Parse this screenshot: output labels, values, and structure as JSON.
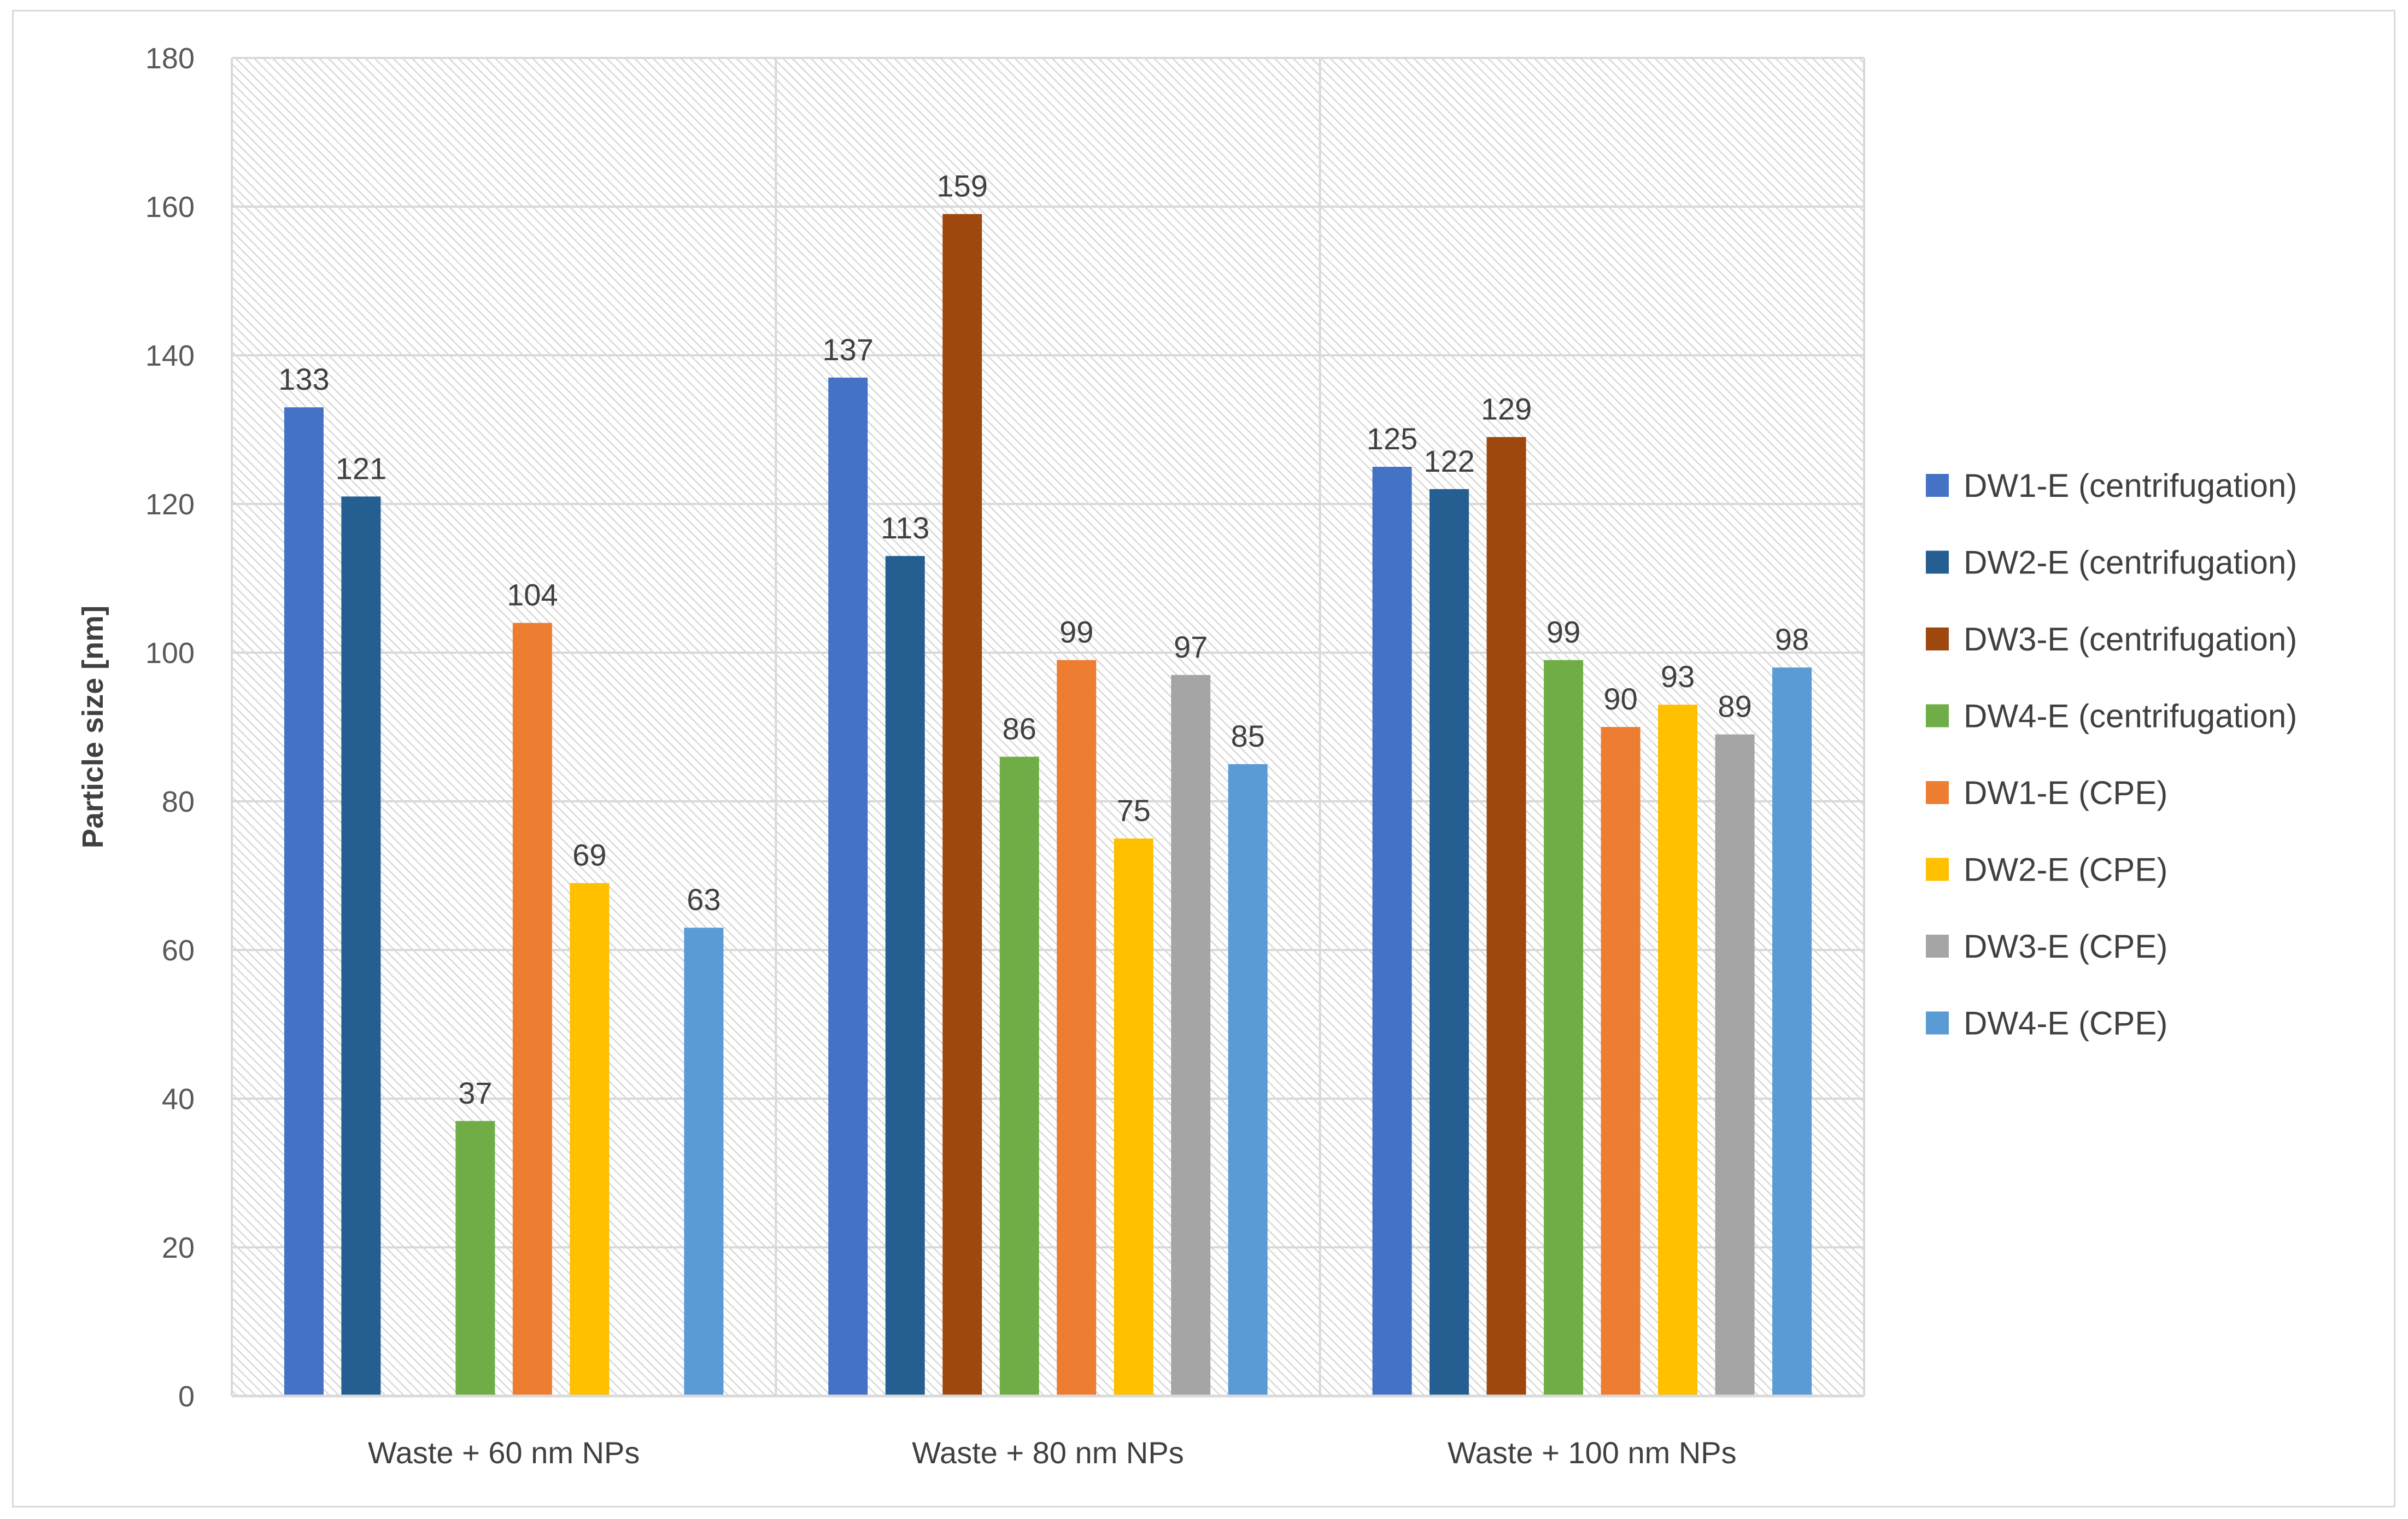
{
  "chart_data": {
    "type": "bar",
    "title": "",
    "xlabel": "",
    "ylabel": "Particle size [nm]",
    "ylim": [
      0,
      180
    ],
    "yticks": [
      0,
      20,
      40,
      60,
      80,
      100,
      120,
      140,
      160,
      180
    ],
    "grid": true,
    "legend_position": "right",
    "categories": [
      "Waste + 60 nm NPs",
      "Waste + 80 nm NPs",
      "Waste + 100 nm NPs"
    ],
    "series": [
      {
        "name": "DW1-E (centrifugation)",
        "color": "#4472C4",
        "values": [
          133,
          137,
          125
        ]
      },
      {
        "name": "DW2-E (centrifugation)",
        "color": "#255E91",
        "values": [
          121,
          113,
          122
        ]
      },
      {
        "name": "DW3-E (centrifugation)",
        "color": "#9E480E",
        "values": [
          null,
          159,
          129
        ]
      },
      {
        "name": "DW4-E (centrifugation)",
        "color": "#70AD47",
        "values": [
          37,
          86,
          99
        ]
      },
      {
        "name": "DW1-E (CPE)",
        "color": "#ED7D31",
        "values": [
          104,
          99,
          90
        ]
      },
      {
        "name": "DW2-E (CPE)",
        "color": "#FFC000",
        "values": [
          69,
          75,
          93
        ]
      },
      {
        "name": "DW3-E (CPE)",
        "color": "#A5A5A5",
        "values": [
          null,
          97,
          89
        ]
      },
      {
        "name": "DW4-E (CPE)",
        "color": "#5B9BD5",
        "values": [
          63,
          85,
          98
        ]
      }
    ]
  }
}
